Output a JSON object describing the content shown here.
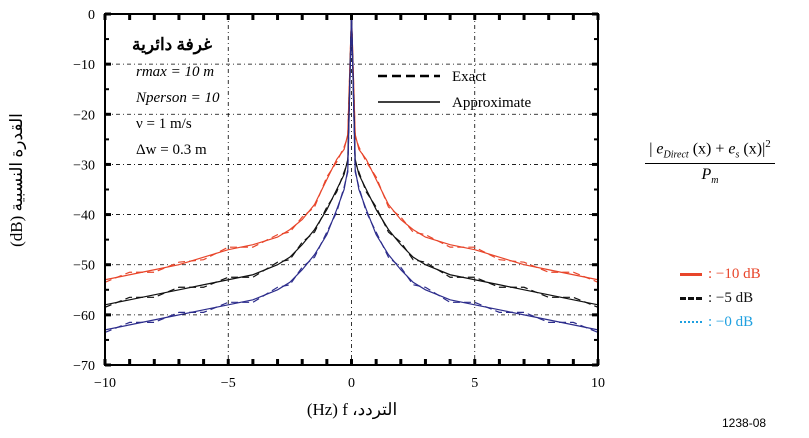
{
  "chart_data": {
    "type": "line",
    "xlabel": "(Hz) f ،التردد",
    "ylabel": "(dB) القدرة النسبية",
    "xlim": [
      -10,
      10
    ],
    "ylim": [
      -70,
      0
    ],
    "x_ticks": [
      "−10",
      "−5",
      "0",
      "5",
      "10"
    ],
    "y_ticks": [
      "0",
      "−10",
      "−20",
      "−30",
      "−40",
      "−50",
      "−60",
      "−70"
    ],
    "grid": true,
    "annotation": {
      "title": "غرفة دائرية",
      "line1": "rmax = 10 m",
      "line2": "Nperson = 10",
      "line3": "ν = 1 m/s",
      "line4": "Δw = 0.3 m"
    },
    "style_legend": [
      {
        "label": "Exact",
        "style": "dashed"
      },
      {
        "label": "Approximate",
        "style": "solid"
      }
    ],
    "level_legend": [
      {
        "label": ": −10 dB",
        "color": "#e8452a"
      },
      {
        "label": ": −5 dB",
        "color": "#111111"
      },
      {
        "label": ": −0 dB",
        "color": "#1fa0e0"
      }
    ],
    "series": [
      {
        "name": "−10 dB",
        "color": "#e8452a",
        "x": [
          -10,
          -9,
          -8,
          -7,
          -6,
          -5,
          -4,
          -3,
          -2.5,
          -2,
          -1.5,
          -1,
          -0.6,
          -0.3,
          -0.15,
          0,
          0.15,
          0.3,
          0.6,
          1,
          1.5,
          2,
          2.5,
          3,
          4,
          5,
          6,
          7,
          8,
          9,
          10
        ],
        "y": [
          -53,
          -52,
          -51,
          -50,
          -48.5,
          -47,
          -46,
          -44.5,
          -43,
          -41,
          -38,
          -33,
          -29,
          -27,
          -24,
          0,
          -24,
          -27,
          -29,
          -33,
          -38,
          -41,
          -43,
          -44.5,
          -46,
          -47,
          -48.5,
          -50,
          -51,
          -52,
          -53
        ]
      },
      {
        "name": "−5 dB",
        "color": "#111111",
        "x": [
          -10,
          -9,
          -8,
          -7,
          -6,
          -5,
          -4,
          -3,
          -2.5,
          -2,
          -1.5,
          -1,
          -0.6,
          -0.3,
          -0.15,
          0,
          0.15,
          0.3,
          0.6,
          1,
          1.5,
          2,
          2.5,
          3,
          4,
          5,
          6,
          7,
          8,
          9,
          10
        ],
        "y": [
          -58,
          -57,
          -56,
          -55,
          -54,
          -53,
          -52,
          -50,
          -48.5,
          -46,
          -43,
          -39,
          -35,
          -32,
          -29,
          0,
          -29,
          -32,
          -35,
          -39,
          -43,
          -46,
          -48.5,
          -50,
          -52,
          -53,
          -54,
          -55,
          -56,
          -57,
          -58
        ]
      },
      {
        "name": "−0 dB",
        "color": "#2d2d8c",
        "x": [
          -10,
          -9,
          -8,
          -7,
          -6,
          -5,
          -4,
          -3,
          -2.5,
          -2,
          -1.5,
          -1,
          -0.6,
          -0.3,
          -0.15,
          0,
          0.15,
          0.3,
          0.6,
          1,
          1.5,
          2,
          2.5,
          3,
          4,
          5,
          6,
          7,
          8,
          9,
          10
        ],
        "y": [
          -63,
          -62,
          -61,
          -60,
          -59,
          -58,
          -57,
          -55,
          -53.5,
          -51,
          -48,
          -44,
          -39,
          -35,
          -31,
          0,
          -31,
          -35,
          -39,
          -44,
          -48,
          -51,
          -53.5,
          -55,
          -57,
          -58,
          -59,
          -60,
          -61,
          -62,
          -63
        ]
      }
    ]
  },
  "formula": {
    "e_direct": "e",
    "sub_direct": "Direct",
    "x1": "(x) +",
    "e_s": "e",
    "sub_s": "s",
    "x2": "(x)",
    "power": "2",
    "denominator": "P",
    "den_sub": "m"
  },
  "figure_id": "1238-08"
}
